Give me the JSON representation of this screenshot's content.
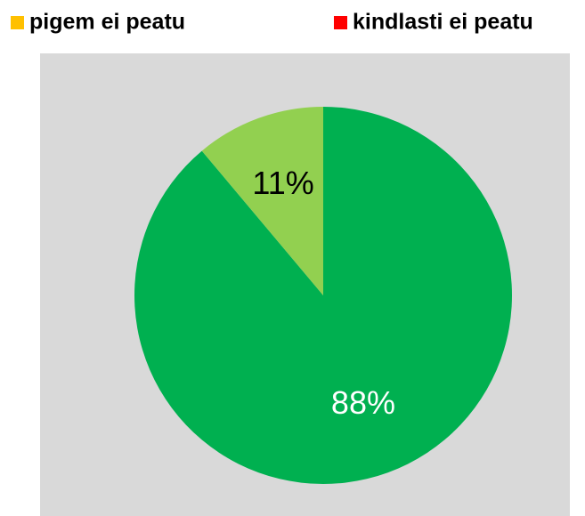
{
  "chart_data": {
    "type": "pie",
    "categories": [
      null,
      "pigem ei peatu",
      "kindlasti ei peatu",
      null
    ],
    "values": [
      88,
      0,
      0,
      11
    ],
    "value_labels": [
      "88%",
      null,
      null,
      "11%"
    ],
    "colors": [
      "#00b050",
      "#ffc000",
      "#ff0000",
      "#92d050"
    ],
    "label_colors": [
      "#ffffff",
      null,
      null,
      "#000000"
    ],
    "legend": "top"
  }
}
